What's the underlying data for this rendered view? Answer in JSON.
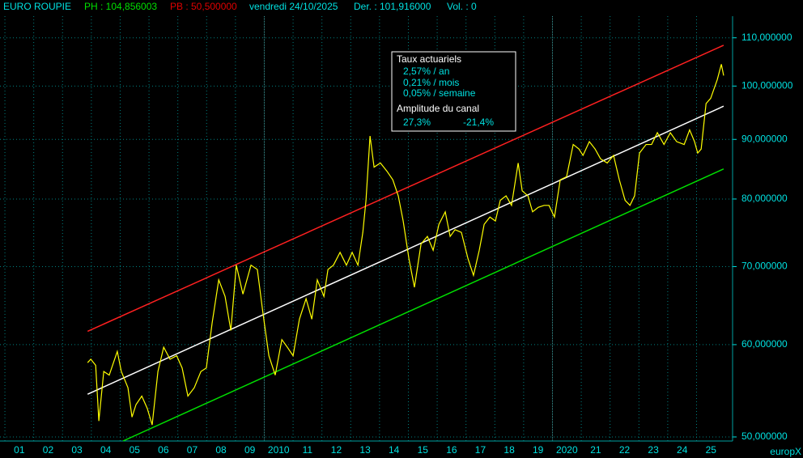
{
  "chart_data": {
    "type": "line",
    "title": "EURO ROUPIE",
    "header": [
      {
        "text": "PH : 104,856003",
        "color": "#00e000"
      },
      {
        "text": "PB : 50,500000",
        "color": "#e00000"
      },
      {
        "text": "vendredi 24/10/2025",
        "color": "#00e0e0"
      },
      {
        "text": "Der. : 101,916000",
        "color": "#00e0e0"
      },
      {
        "text": "Vol. : 0",
        "color": "#00e0e0"
      }
    ],
    "annotation": {
      "title": "Taux actuariels",
      "lines": [
        "2,57% / an",
        "0,21% / mois",
        "0,05% / semaine"
      ],
      "subtitle": "Amplitude du canal",
      "amplitude": [
        "27,3%",
        "-21,4%"
      ]
    },
    "watermark": "europX",
    "log_scale": true,
    "grid": true,
    "xlim": [
      2000.83,
      2026.25
    ],
    "ylim": [
      49.6,
      114.8
    ],
    "xticks": [
      {
        "value": 2001,
        "label": "01"
      },
      {
        "value": 2002,
        "label": "02"
      },
      {
        "value": 2003,
        "label": "03"
      },
      {
        "value": 2004,
        "label": "04"
      },
      {
        "value": 2005,
        "label": "05"
      },
      {
        "value": 2006,
        "label": "06"
      },
      {
        "value": 2007,
        "label": "07"
      },
      {
        "value": 2008,
        "label": "08"
      },
      {
        "value": 2009,
        "label": "09"
      },
      2010,
      {
        "value": 2011,
        "label": "11"
      },
      {
        "value": 2012,
        "label": "12"
      },
      {
        "value": 2013,
        "label": "13"
      },
      {
        "value": 2014,
        "label": "14"
      },
      {
        "value": 2015,
        "label": "15"
      },
      {
        "value": 2016,
        "label": "16"
      },
      {
        "value": 2017,
        "label": "17"
      },
      {
        "value": 2018,
        "label": "18"
      },
      {
        "value": 2019,
        "label": "19"
      },
      2020,
      {
        "value": 2021,
        "label": "21"
      },
      {
        "value": 2022,
        "label": "22"
      },
      {
        "value": 2023,
        "label": "23"
      },
      {
        "value": 2024,
        "label": "24"
      },
      {
        "value": 2025,
        "label": "25"
      }
    ],
    "yticks": [
      {
        "value": 50,
        "label": "50,000000"
      },
      {
        "value": 60,
        "label": "60,000000"
      },
      {
        "value": 70,
        "label": "70,000000"
      },
      {
        "value": 80,
        "label": "80,000000"
      },
      {
        "value": 90,
        "label": "90,000000"
      },
      {
        "value": 100,
        "label": "100,000000"
      },
      {
        "value": 110,
        "label": "110,000000"
      }
    ],
    "series": [
      {
        "color": "#ffff00",
        "x": [
          2003.87,
          2003.98,
          2004.15,
          2004.26,
          2004.43,
          2004.62,
          2004.9,
          2005.04,
          2005.27,
          2005.41,
          2005.55,
          2005.75,
          2005.94,
          2006.11,
          2006.31,
          2006.51,
          2006.73,
          2006.96,
          2007.15,
          2007.35,
          2007.57,
          2007.8,
          2007.99,
          2008.19,
          2008.42,
          2008.64,
          2008.84,
          2009.03,
          2009.26,
          2009.54,
          2009.76,
          2009.96,
          2010.16,
          2010.38,
          2010.61,
          2010.8,
          2011.0,
          2011.22,
          2011.45,
          2011.65,
          2011.84,
          2012.07,
          2012.21,
          2012.4,
          2012.63,
          2012.85,
          2013.05,
          2013.25,
          2013.42,
          2013.53,
          2013.67,
          2013.81,
          2014.03,
          2014.26,
          2014.46,
          2014.65,
          2014.82,
          2015.02,
          2015.21,
          2015.44,
          2015.66,
          2015.86,
          2016.06,
          2016.28,
          2016.45,
          2016.62,
          2016.84,
          2017.07,
          2017.26,
          2017.46,
          2017.63,
          2017.83,
          2018.02,
          2018.19,
          2018.39,
          2018.58,
          2018.81,
          2018.95,
          2019.15,
          2019.31,
          2019.51,
          2019.71,
          2019.88,
          2020.07,
          2020.27,
          2020.49,
          2020.72,
          2020.92,
          2021.06,
          2021.28,
          2021.48,
          2021.67,
          2021.9,
          2022.12,
          2022.32,
          2022.52,
          2022.69,
          2022.85,
          2023.02,
          2023.25,
          2023.44,
          2023.64,
          2023.87,
          2024.09,
          2024.31,
          2024.57,
          2024.76,
          2024.93,
          2025.04,
          2025.16,
          2025.33,
          2025.49,
          2025.72,
          2025.86,
          2025.94
        ],
        "values": [
          57.9,
          58.3,
          57.6,
          51.6,
          56.9,
          56.5,
          59.2,
          56.9,
          55.1,
          52.0,
          53.3,
          54.2,
          52.9,
          51.2,
          56.9,
          59.7,
          58.3,
          58.7,
          57.3,
          54.2,
          55.1,
          56.9,
          57.3,
          62.6,
          68.2,
          66.0,
          61.7,
          70.2,
          66.3,
          70.2,
          69.6,
          63.7,
          58.7,
          56.5,
          60.6,
          59.7,
          58.7,
          63.1,
          65.7,
          63.1,
          68.2,
          66.0,
          69.6,
          70.2,
          72.0,
          70.2,
          72.0,
          70.2,
          74.9,
          79.8,
          90.6,
          85.2,
          85.9,
          84.5,
          83.1,
          80.5,
          76.6,
          71.1,
          67.2,
          73.2,
          74.3,
          72.3,
          76.1,
          78.0,
          74.3,
          75.3,
          74.9,
          71.1,
          68.8,
          72.3,
          76.1,
          77.2,
          76.6,
          79.8,
          80.5,
          79.0,
          85.9,
          81.3,
          80.5,
          78.0,
          78.7,
          79.0,
          79.0,
          77.2,
          83.1,
          83.6,
          89.1,
          88.3,
          87.2,
          89.6,
          88.3,
          86.6,
          85.9,
          87.2,
          83.1,
          79.8,
          79.0,
          80.5,
          87.6,
          89.1,
          89.1,
          91.2,
          89.1,
          91.2,
          89.6,
          89.1,
          91.7,
          89.6,
          87.6,
          88.3,
          96.6,
          97.6,
          101.3,
          104.4,
          102.1
        ]
      },
      {
        "color": "#ff2020",
        "x": [
          2003.87,
          2025.94
        ],
        "values": [
          61.6,
          108.4
        ]
      },
      {
        "color": "#ffffff",
        "x": [
          2003.87,
          2025.94
        ],
        "values": [
          54.4,
          96.1
        ]
      },
      {
        "color": "#00e000",
        "x": [
          2005.1,
          2025.94
        ],
        "values": [
          49.6,
          84.9
        ]
      }
    ]
  }
}
